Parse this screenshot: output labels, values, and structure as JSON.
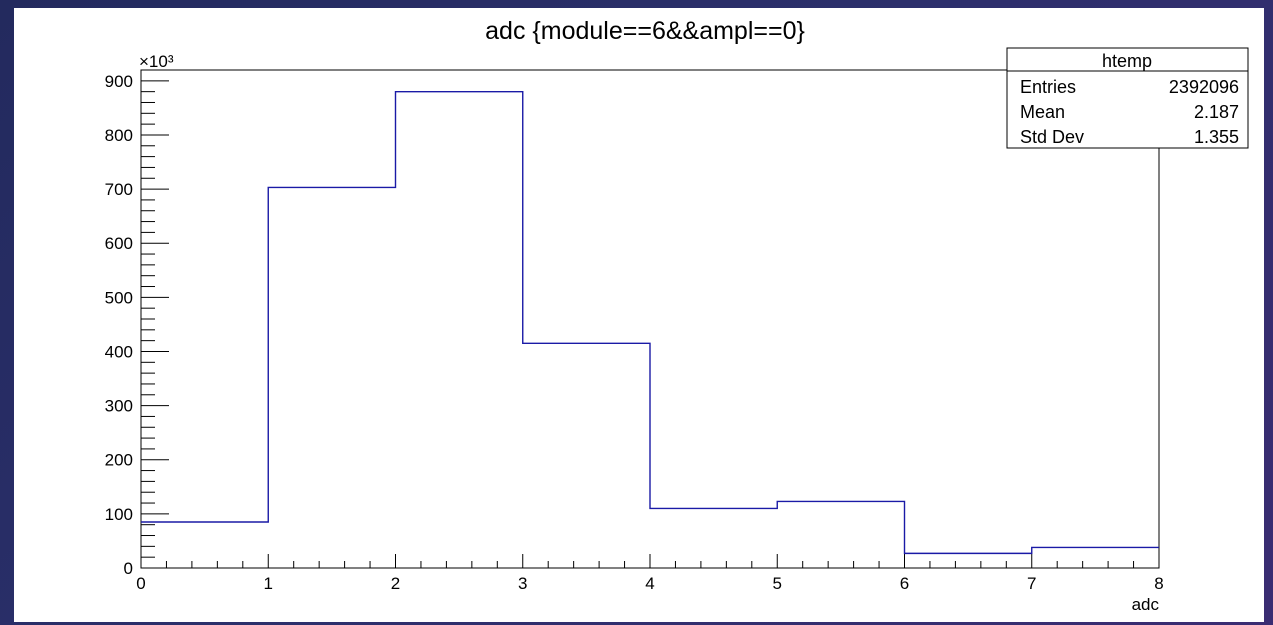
{
  "chart_data": {
    "type": "bar",
    "histogram": true,
    "title": "adc {module==6&&ampl==0}",
    "xlabel": "adc",
    "ylabel": "",
    "y_multiplier_label": "×10³",
    "bin_edges": [
      0,
      1,
      2,
      3,
      4,
      5,
      6,
      7,
      8
    ],
    "values": [
      85,
      703,
      880,
      415,
      110,
      123,
      27,
      38
    ],
    "value_units": "×10³ entries",
    "xlim": [
      0,
      8
    ],
    "ylim": [
      0,
      920
    ],
    "xticks": [
      "0",
      "1",
      "2",
      "3",
      "4",
      "5",
      "6",
      "7",
      "8"
    ],
    "yticks": [
      "0",
      "100",
      "200",
      "300",
      "400",
      "500",
      "600",
      "700",
      "800",
      "900"
    ],
    "line_color": "#1a1aa6",
    "grid": false,
    "stats_box": {
      "name": "htemp",
      "placement": "top-right",
      "rows": [
        {
          "label": "Entries",
          "value": "2392096"
        },
        {
          "label": "Mean",
          "value": "2.187"
        },
        {
          "label": "Std Dev",
          "value": "1.355"
        }
      ]
    }
  }
}
